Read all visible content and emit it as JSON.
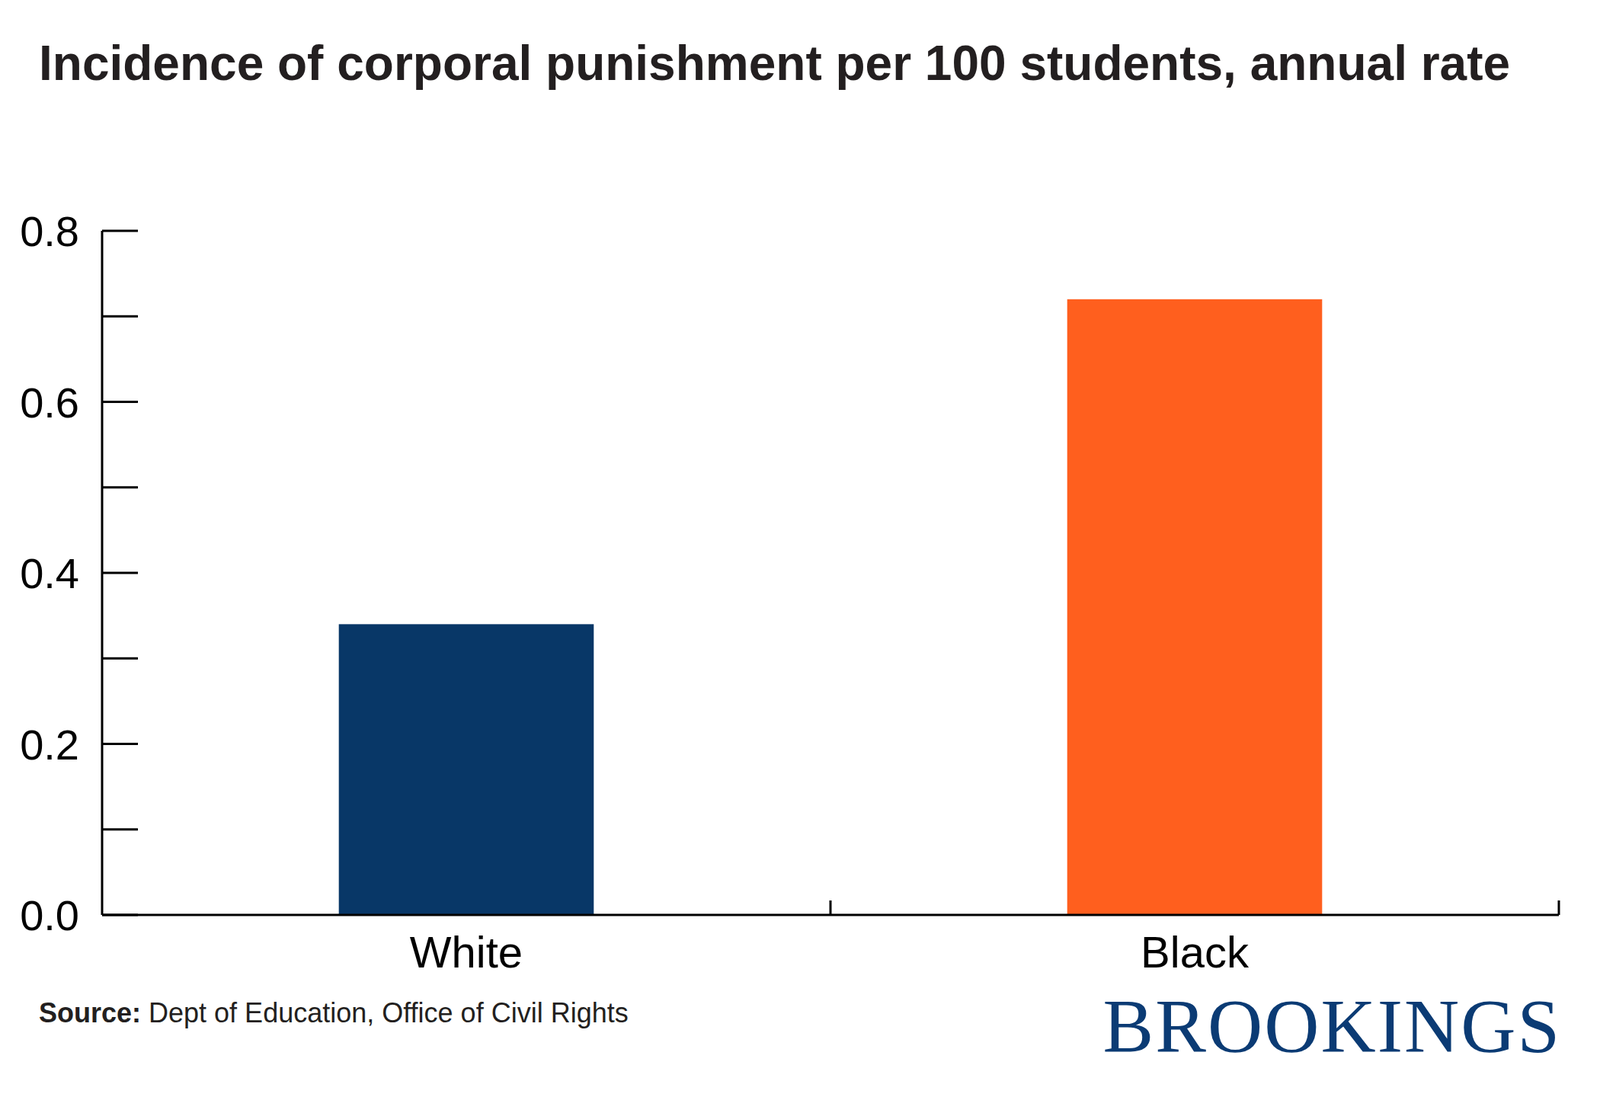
{
  "chart_data": {
    "type": "bar",
    "title": "Incidence of corporal punishment per 100 students, annual rate",
    "categories": [
      "White",
      "Black"
    ],
    "values": [
      0.34,
      0.72
    ],
    "colors": [
      "#083767",
      "#ff5f1e"
    ],
    "ylim": [
      0,
      0.8
    ],
    "yticks": [
      {
        "value": 0,
        "label": "0.0"
      },
      0.2,
      0.4,
      0.6,
      0.8
    ],
    "grid": false,
    "source_label": "Source:",
    "source": "Dept of Education, Office of Civil Rights",
    "logo": "BROOKINGS"
  }
}
